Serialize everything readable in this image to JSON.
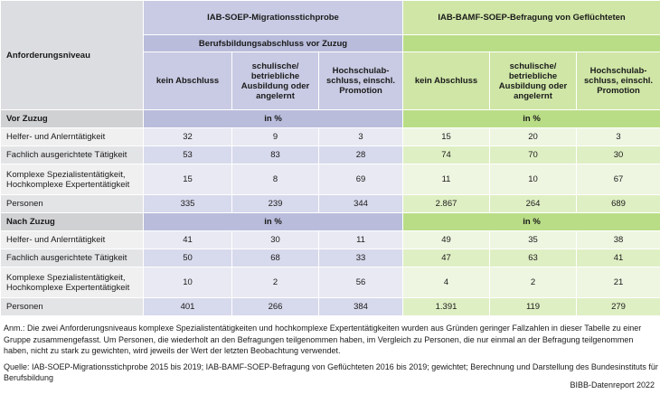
{
  "table": {
    "header": {
      "row_label": "Anforderungsniveau",
      "group1": "IAB-SOEP-Migrationsstichprobe",
      "group2": "IAB-BAMF-SOEP-Befragung von Geflüchteten",
      "subheader": "Berufsbildungsabschluss vor Zuzug",
      "columns": [
        "kein Abschluss",
        "schulische/ betriebliche Ausbildung oder angelernt",
        "Hochschulab-schluss, einschl. Promotion"
      ]
    },
    "sections": [
      {
        "title": "Vor Zuzug",
        "unit1": "in %",
        "unit2": "in %",
        "rows": [
          {
            "label": "Helfer- und Anlerntätigkeit",
            "values": [
              "32",
              "9",
              "3",
              "15",
              "20",
              "3"
            ]
          },
          {
            "label": "Fachlich ausgerichtete Tätigkeit",
            "values": [
              "53",
              "83",
              "28",
              "74",
              "70",
              "30"
            ]
          },
          {
            "label": "Komplexe Spezialistentätigkeit, Hochkomplexe Expertentätigkeit",
            "values": [
              "15",
              "8",
              "69",
              "11",
              "10",
              "67"
            ]
          },
          {
            "label": "Personen",
            "values": [
              "335",
              "239",
              "344",
              "2.867",
              "264",
              "689"
            ]
          }
        ]
      },
      {
        "title": "Nach Zuzug",
        "unit1": "in %",
        "unit2": "in %",
        "rows": [
          {
            "label": "Helfer- und Anlerntätigkeit",
            "values": [
              "41",
              "30",
              "11",
              "49",
              "35",
              "38"
            ]
          },
          {
            "label": "Fachlich ausgerichtete Tätigkeit",
            "values": [
              "50",
              "68",
              "33",
              "47",
              "63",
              "41"
            ]
          },
          {
            "label": "Komplexe Spezialistentätigkeit, Hochkomplexe Expertentätigkeit",
            "values": [
              "10",
              "2",
              "56",
              "4",
              "2",
              "21"
            ]
          },
          {
            "label": "Personen",
            "values": [
              "401",
              "266",
              "384",
              "1.391",
              "119",
              "279"
            ]
          }
        ]
      }
    ]
  },
  "notes": {
    "anm": "Anm.: Die zwei Anforderungsniveaus komplexe Spezialistentätigkeiten und hochkomplexe Expertentätigkeiten wurden aus Gründen geringer Fallzahlen in dieser Tabelle zu einer Gruppe zusammengefasst. Um Personen, die wiederholt an den Befragungen teilgenommen haben, im Vergleich zu Personen, die nur einmal an der Befragung teilgenommen haben, nicht zu stark zu gewichten, wird jeweils der Wert der letzten Beobachtung verwendet.",
    "quelle": "Quelle: IAB-SOEP-Migrationsstichprobe 2015 bis 2019; IAB-BAMF-SOEP-Befragung von Geflüchteten 2016 bis 2019; gewichtet; Berechnung und Darstellung des Bundesinstituts für Berufsbildung",
    "brand": "BIBB-Datenreport 2022"
  }
}
